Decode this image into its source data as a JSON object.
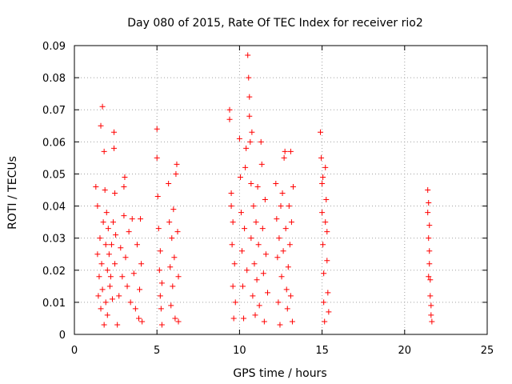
{
  "chart_data": {
    "type": "scatter",
    "title": "Day 080 of 2015, Rate Of TEC Index for receiver rio2",
    "xlabel": "GPS time / hours",
    "ylabel": "ROTI / TECUs",
    "xlim": [
      0,
      25
    ],
    "ylim": [
      0,
      0.09
    ],
    "xticks": [
      "0",
      "5",
      "10",
      "15",
      "20",
      "25"
    ],
    "yticks": [
      "0",
      "0.01",
      "0.02",
      "0.03",
      "0.04",
      "0.05",
      "0.06",
      "0.07",
      "0.08",
      "0.09"
    ],
    "grid": true,
    "marker": "+",
    "color": "#ff0000",
    "series": [
      {
        "points": [
          [
            1.3,
            0.046
          ],
          [
            1.4,
            0.04
          ],
          [
            1.4,
            0.025
          ],
          [
            1.45,
            0.012
          ],
          [
            1.5,
            0.018
          ],
          [
            1.55,
            0.03
          ],
          [
            1.6,
            0.065
          ],
          [
            1.6,
            0.008
          ],
          [
            1.65,
            0.022
          ],
          [
            1.7,
            0.071
          ],
          [
            1.7,
            0.014
          ],
          [
            1.75,
            0.035
          ],
          [
            1.8,
            0.057
          ],
          [
            1.8,
            0.003
          ],
          [
            1.85,
            0.045
          ],
          [
            1.9,
            0.028
          ],
          [
            1.9,
            0.01
          ],
          [
            1.95,
            0.038
          ],
          [
            2.0,
            0.02
          ],
          [
            2.0,
            0.006
          ],
          [
            2.05,
            0.033
          ],
          [
            2.1,
            0.025
          ],
          [
            2.15,
            0.015
          ],
          [
            2.2,
            0.018
          ],
          [
            2.25,
            0.028
          ],
          [
            2.3,
            0.011
          ],
          [
            2.35,
            0.035
          ],
          [
            2.4,
            0.058
          ],
          [
            2.4,
            0.063
          ],
          [
            2.45,
            0.044
          ],
          [
            2.45,
            0.022
          ],
          [
            2.5,
            0.031
          ],
          [
            2.6,
            0.003
          ],
          [
            2.7,
            0.012
          ],
          [
            2.8,
            0.027
          ],
          [
            2.9,
            0.018
          ],
          [
            3.0,
            0.046
          ],
          [
            3.0,
            0.037
          ],
          [
            3.05,
            0.049
          ],
          [
            3.1,
            0.024
          ],
          [
            3.2,
            0.015
          ],
          [
            3.3,
            0.032
          ],
          [
            3.4,
            0.01
          ],
          [
            3.5,
            0.036
          ],
          [
            3.6,
            0.019
          ],
          [
            3.7,
            0.008
          ],
          [
            3.8,
            0.028
          ],
          [
            3.9,
            0.005
          ],
          [
            3.95,
            0.014
          ],
          [
            4.0,
            0.036
          ],
          [
            4.05,
            0.022
          ],
          [
            4.1,
            0.004
          ],
          [
            5.0,
            0.064
          ],
          [
            5.0,
            0.055
          ],
          [
            5.05,
            0.043
          ],
          [
            5.1,
            0.033
          ],
          [
            5.15,
            0.02
          ],
          [
            5.2,
            0.026
          ],
          [
            5.25,
            0.008
          ],
          [
            5.3,
            0.016
          ],
          [
            5.3,
            0.003
          ],
          [
            5.2,
            0.012
          ],
          [
            5.7,
            0.047
          ],
          [
            5.75,
            0.035
          ],
          [
            5.8,
            0.021
          ],
          [
            5.85,
            0.009
          ],
          [
            5.9,
            0.03
          ],
          [
            5.95,
            0.015
          ],
          [
            6.0,
            0.039
          ],
          [
            6.05,
            0.024
          ],
          [
            6.1,
            0.005
          ],
          [
            6.15,
            0.05
          ],
          [
            6.2,
            0.053
          ],
          [
            6.25,
            0.032
          ],
          [
            6.3,
            0.018
          ],
          [
            6.3,
            0.004
          ],
          [
            9.4,
            0.07
          ],
          [
            9.4,
            0.067
          ],
          [
            9.5,
            0.044
          ],
          [
            9.5,
            0.04
          ],
          [
            9.55,
            0.028
          ],
          [
            9.6,
            0.015
          ],
          [
            9.65,
            0.005
          ],
          [
            9.7,
            0.022
          ],
          [
            9.75,
            0.01
          ],
          [
            9.6,
            0.035
          ],
          [
            10.0,
            0.061
          ],
          [
            10.05,
            0.049
          ],
          [
            10.1,
            0.038
          ],
          [
            10.15,
            0.026
          ],
          [
            10.2,
            0.015
          ],
          [
            10.25,
            0.005
          ],
          [
            10.3,
            0.033
          ],
          [
            10.35,
            0.052
          ],
          [
            10.4,
            0.058
          ],
          [
            10.45,
            0.02
          ],
          [
            10.5,
            0.087
          ],
          [
            10.55,
            0.08
          ],
          [
            10.6,
            0.074
          ],
          [
            10.6,
            0.068
          ],
          [
            10.65,
            0.06
          ],
          [
            10.7,
            0.047
          ],
          [
            10.7,
            0.03
          ],
          [
            10.75,
            0.063
          ],
          [
            10.8,
            0.012
          ],
          [
            10.85,
            0.04
          ],
          [
            10.9,
            0.022
          ],
          [
            10.95,
            0.006
          ],
          [
            11.0,
            0.035
          ],
          [
            11.05,
            0.017
          ],
          [
            11.1,
            0.046
          ],
          [
            11.15,
            0.028
          ],
          [
            11.2,
            0.009
          ],
          [
            11.3,
            0.06
          ],
          [
            11.35,
            0.053
          ],
          [
            11.4,
            0.033
          ],
          [
            11.45,
            0.019
          ],
          [
            11.5,
            0.004
          ],
          [
            11.55,
            0.042
          ],
          [
            11.6,
            0.025
          ],
          [
            11.7,
            0.013
          ],
          [
            12.2,
            0.047
          ],
          [
            12.25,
            0.036
          ],
          [
            12.3,
            0.024
          ],
          [
            12.35,
            0.01
          ],
          [
            12.4,
            0.03
          ],
          [
            12.45,
            0.003
          ],
          [
            12.5,
            0.04
          ],
          [
            12.55,
            0.018
          ],
          [
            12.6,
            0.044
          ],
          [
            12.65,
            0.026
          ],
          [
            12.7,
            0.055
          ],
          [
            12.75,
            0.057
          ],
          [
            12.8,
            0.033
          ],
          [
            12.85,
            0.014
          ],
          [
            12.9,
            0.008
          ],
          [
            12.95,
            0.021
          ],
          [
            13.0,
            0.04
          ],
          [
            13.05,
            0.028
          ],
          [
            13.1,
            0.057
          ],
          [
            13.1,
            0.012
          ],
          [
            13.15,
            0.035
          ],
          [
            13.2,
            0.004
          ],
          [
            13.25,
            0.046
          ],
          [
            14.9,
            0.063
          ],
          [
            14.95,
            0.055
          ],
          [
            15.0,
            0.047
          ],
          [
            15.0,
            0.038
          ],
          [
            15.05,
            0.028
          ],
          [
            15.1,
            0.019
          ],
          [
            15.1,
            0.01
          ],
          [
            15.15,
            0.004
          ],
          [
            15.2,
            0.052
          ],
          [
            15.25,
            0.042
          ],
          [
            15.3,
            0.032
          ],
          [
            15.3,
            0.023
          ],
          [
            15.35,
            0.013
          ],
          [
            15.4,
            0.007
          ],
          [
            15.05,
            0.049
          ],
          [
            15.2,
            0.035
          ],
          [
            21.4,
            0.045
          ],
          [
            21.4,
            0.038
          ],
          [
            21.45,
            0.041
          ],
          [
            21.45,
            0.03
          ],
          [
            21.5,
            0.026
          ],
          [
            21.5,
            0.022
          ],
          [
            21.55,
            0.017
          ],
          [
            21.55,
            0.012
          ],
          [
            21.6,
            0.009
          ],
          [
            21.6,
            0.006
          ],
          [
            21.65,
            0.004
          ],
          [
            21.5,
            0.034
          ],
          [
            21.45,
            0.018
          ]
        ]
      }
    ]
  }
}
